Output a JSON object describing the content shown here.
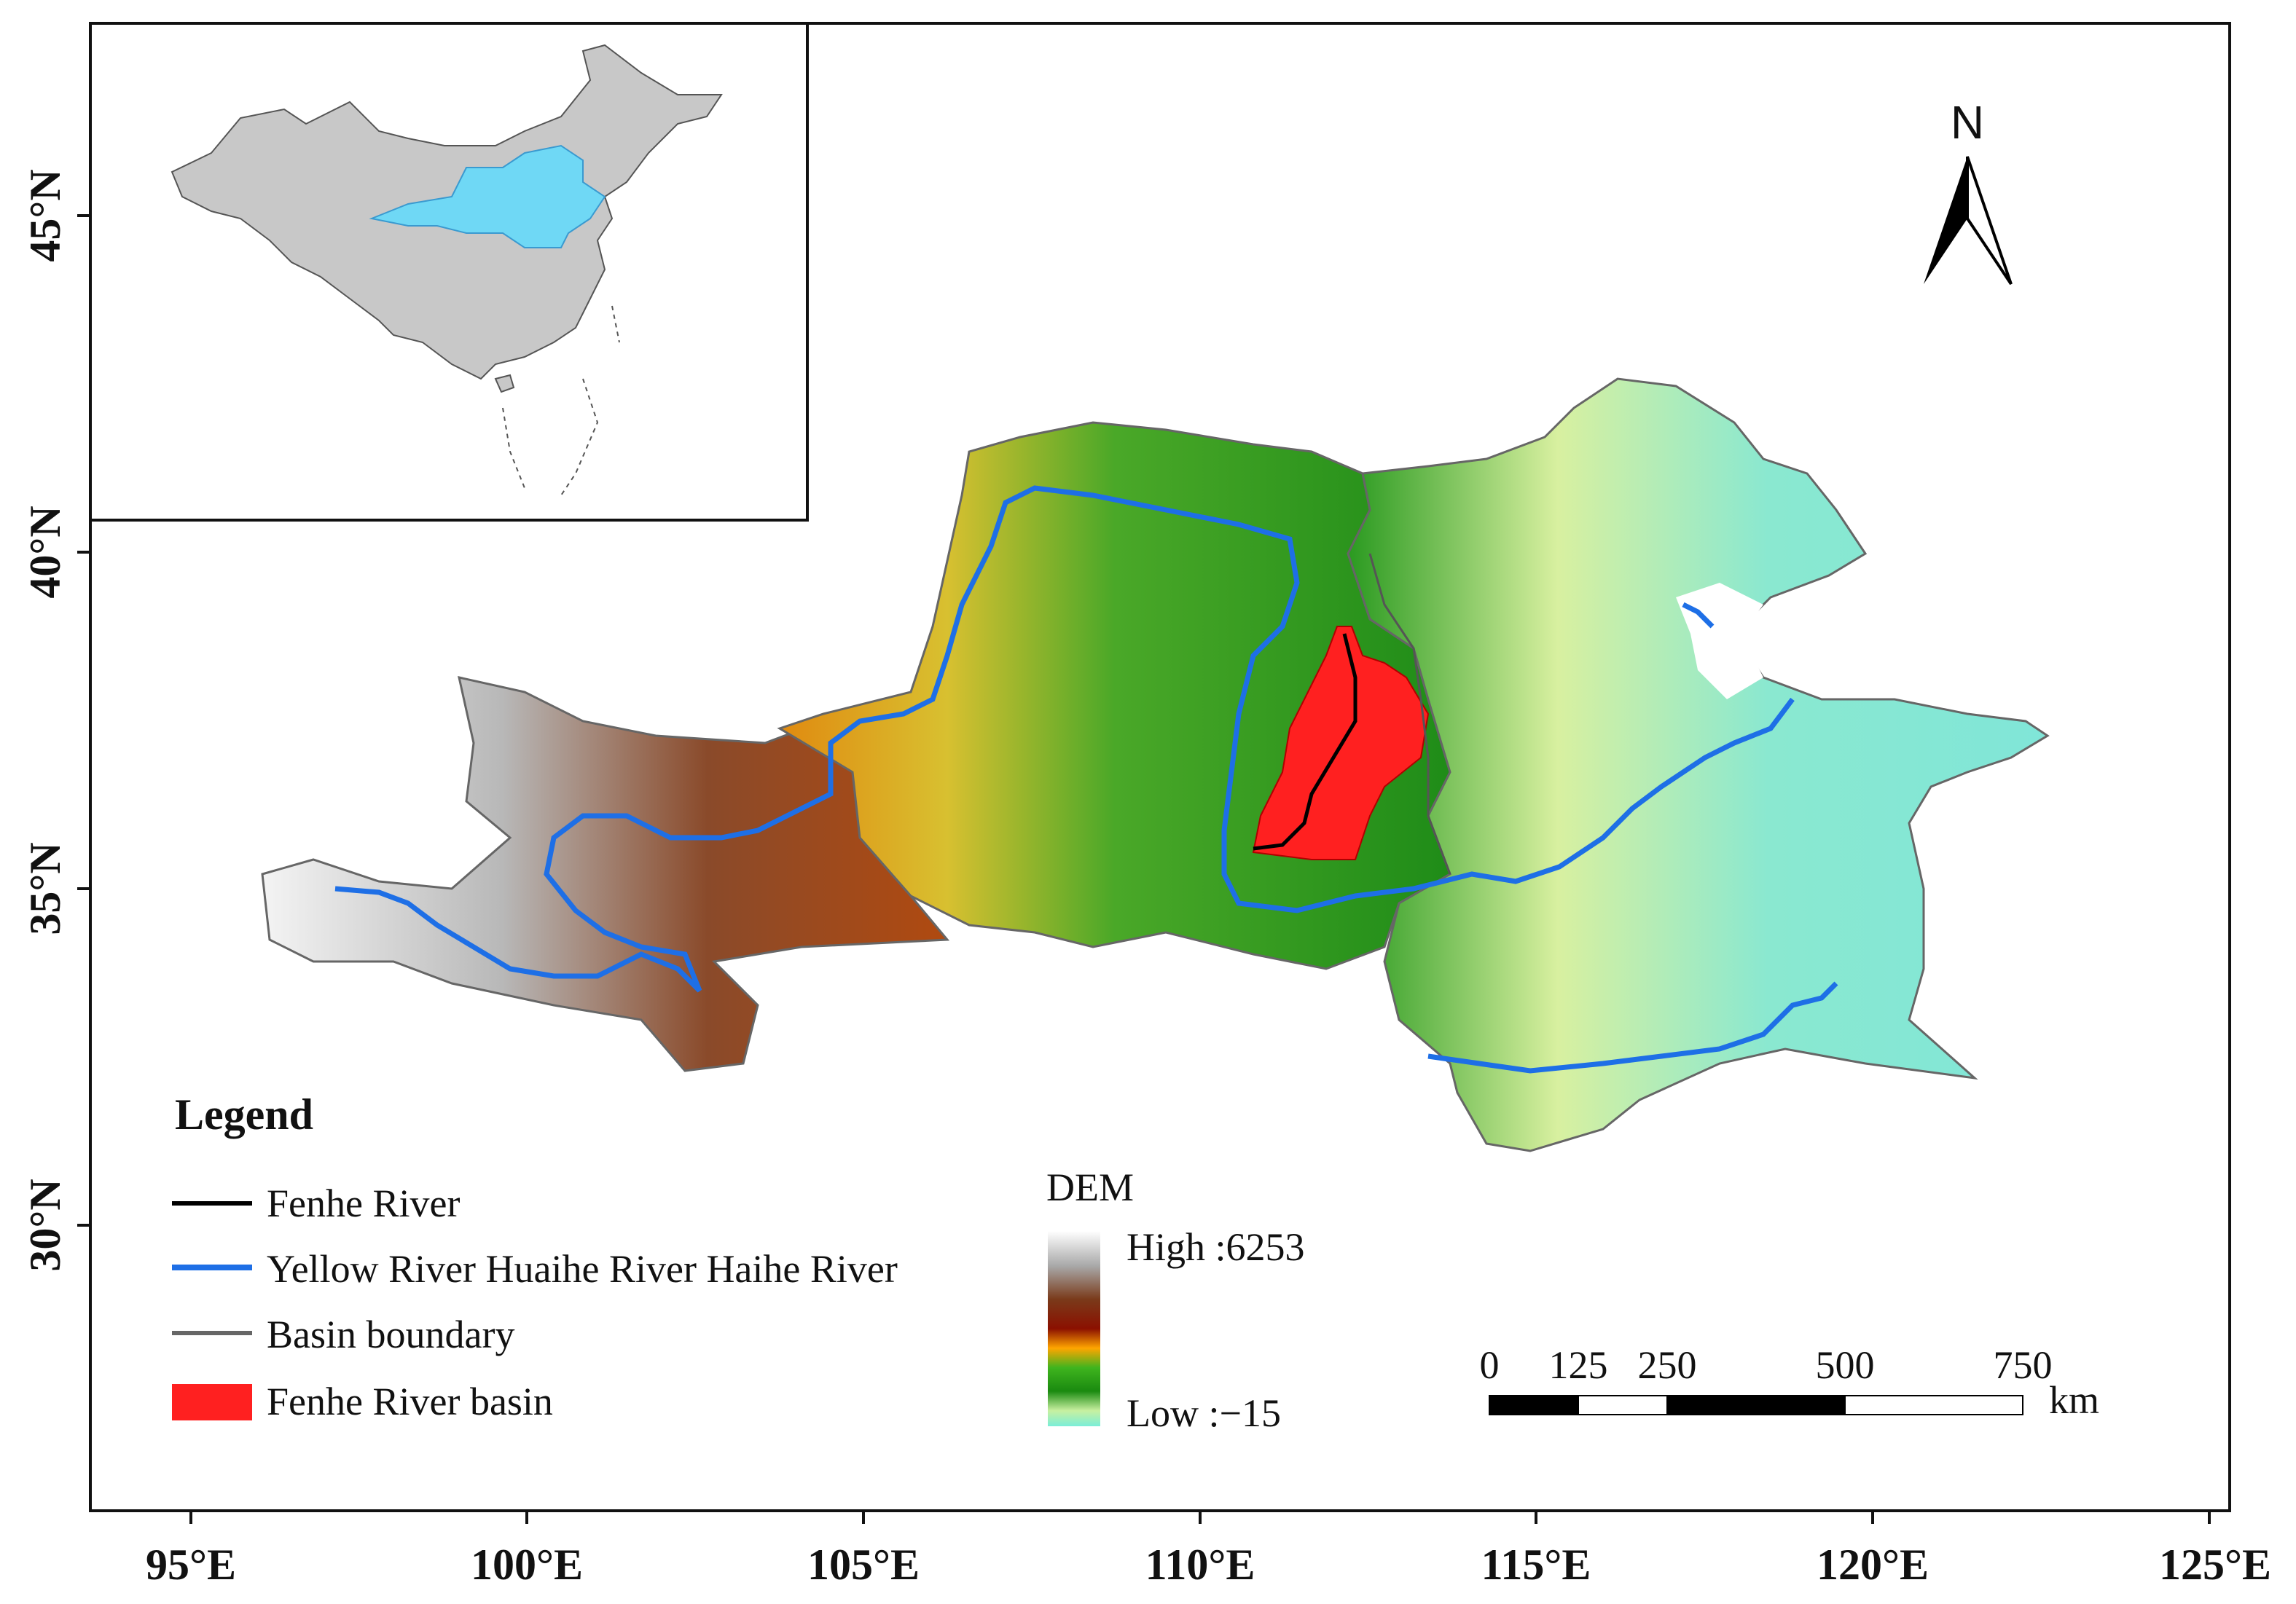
{
  "axes": {
    "x_ticks": [
      "95°E",
      "100°E",
      "105°E",
      "110°E",
      "115°E",
      "120°E",
      "125°E"
    ],
    "y_ticks": [
      "45°N",
      "40°N",
      "35°N",
      "30°N"
    ]
  },
  "north_arrow": {
    "label": "N"
  },
  "legend": {
    "title": "Legend",
    "items": [
      {
        "label": "Fenhe River",
        "color": "#000000"
      },
      {
        "label": "Yellow River Huaihe River Haihe River",
        "color": "#1e6fe6"
      },
      {
        "label": "Basin boundary",
        "color": "#666666"
      },
      {
        "label": "Fenhe River basin",
        "color": "#ff2020"
      }
    ]
  },
  "dem_legend": {
    "title": "DEM",
    "high_label": "High :6253",
    "low_label": "Low :−15",
    "colors": [
      "#ffffff",
      "#9a9a9a",
      "#7a2a10",
      "#8b0f00",
      "#ffb300",
      "#2e9d1a",
      "#1a8a10",
      "#8ef0c8"
    ]
  },
  "scale_bar": {
    "labels": [
      "0",
      "125",
      "250",
      "500",
      "750"
    ],
    "unit": "km"
  },
  "colors": {
    "river_blue": "#1e6fe6",
    "fenhe_red": "#ff2020",
    "inset_land": "#c8c8c8",
    "inset_highlight": "#6fd8f5"
  }
}
